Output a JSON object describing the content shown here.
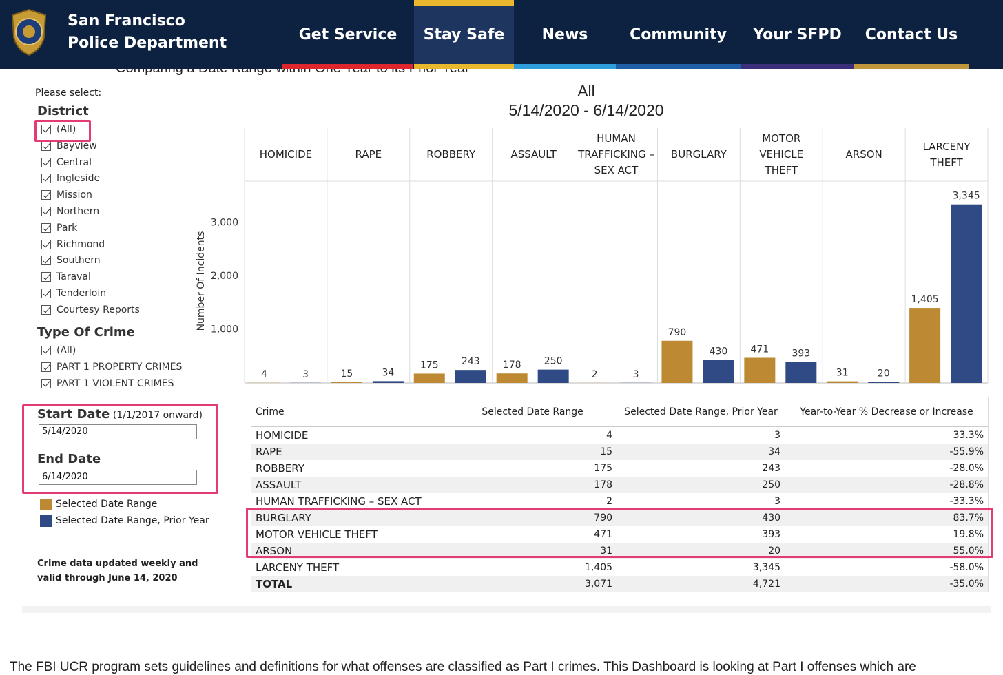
{
  "header": {
    "org_line1": "San Francisco",
    "org_line2": "Police Department"
  },
  "nav": [
    "Get Service",
    "Stay Safe",
    "News",
    "Community",
    "Your SFPD",
    "Contact Us"
  ],
  "dashboard_title": "Comparing a Date Range within One Year to its Prior Year",
  "filters": {
    "prompt": "Please select:",
    "district": {
      "label": "District",
      "options": [
        "(All)",
        "Bayview",
        "Central",
        "Ingleside",
        "Mission",
        "Northern",
        "Park",
        "Richmond",
        "Southern",
        "Taraval",
        "Tenderloin",
        "Courtesy Reports"
      ]
    },
    "crime_type": {
      "label": "Type Of Crime",
      "options": [
        "(All)",
        "PART 1 PROPERTY CRIMES",
        "PART 1 VIOLENT CRIMES"
      ]
    },
    "start_date": {
      "label": "Start Date",
      "hint": "(1/1/2017 onward)",
      "value": "5/14/2020"
    },
    "end_date": {
      "label": "End Date",
      "value": "6/14/2020"
    }
  },
  "note": [
    "Crime data updated weekly and",
    "valid through June 14, 2020"
  ],
  "chart_data": {
    "type": "bar",
    "title": "All",
    "subtitle": "5/14/2020 - 6/14/2020",
    "y_label": "Number Of Incidents",
    "categories": [
      "HOMICIDE",
      "RAPE",
      "ROBBERY",
      "ASSAULT",
      "HUMAN TRAFFICKING – SEX ACT",
      "BURGLARY",
      "MOTOR VEHICLE THEFT",
      "ARSON",
      "LARCENY THEFT"
    ],
    "series": [
      {
        "name": "Selected Date Range",
        "color": "#bd8a33",
        "values": [
          4,
          15,
          175,
          178,
          2,
          790,
          471,
          31,
          1405
        ],
        "value_labels": [
          "4",
          "15",
          "175",
          "178",
          "2",
          "790",
          "471",
          "31",
          "1,405"
        ]
      },
      {
        "name": "Selected Date Range, Prior Year",
        "color": "#2f4a85",
        "values": [
          3,
          34,
          243,
          250,
          3,
          430,
          393,
          20,
          3345
        ],
        "value_labels": [
          "3",
          "34",
          "243",
          "250",
          "3",
          "430",
          "393",
          "20",
          "3,345"
        ]
      }
    ],
    "ylim": [
      0,
      3780
    ],
    "yticks": [
      {
        "value": 1000,
        "label": "1,000"
      },
      {
        "value": 2000,
        "label": "2,000"
      },
      {
        "value": 3000,
        "label": "3,000"
      }
    ],
    "grid": false
  },
  "table": {
    "columns": [
      "Crime",
      "Selected Date Range",
      "Selected Date Range, Prior Year",
      "Year-to-Year % Decrease or Increase"
    ],
    "rows": [
      [
        "HOMICIDE",
        "4",
        "3",
        "33.3%"
      ],
      [
        "RAPE",
        "15",
        "34",
        "-55.9%"
      ],
      [
        "ROBBERY",
        "175",
        "243",
        "-28.0%"
      ],
      [
        "ASSAULT",
        "178",
        "250",
        "-28.8%"
      ],
      [
        "HUMAN TRAFFICKING – SEX ACT",
        "2",
        "3",
        "-33.3%"
      ],
      [
        "BURGLARY",
        "790",
        "430",
        "83.7%"
      ],
      [
        "MOTOR VEHICLE THEFT",
        "471",
        "393",
        "19.8%"
      ],
      [
        "ARSON",
        "31",
        "20",
        "55.0%"
      ],
      [
        "LARCENY THEFT",
        "1,405",
        "3,345",
        "-58.0%"
      ],
      [
        "TOTAL",
        "3,071",
        "4,721",
        "-35.0%"
      ]
    ]
  },
  "body_text": "The FBI UCR program sets guidelines and definitions for what offenses are classified as Part I crimes. This Dashboard is looking at Part I offenses which are"
}
